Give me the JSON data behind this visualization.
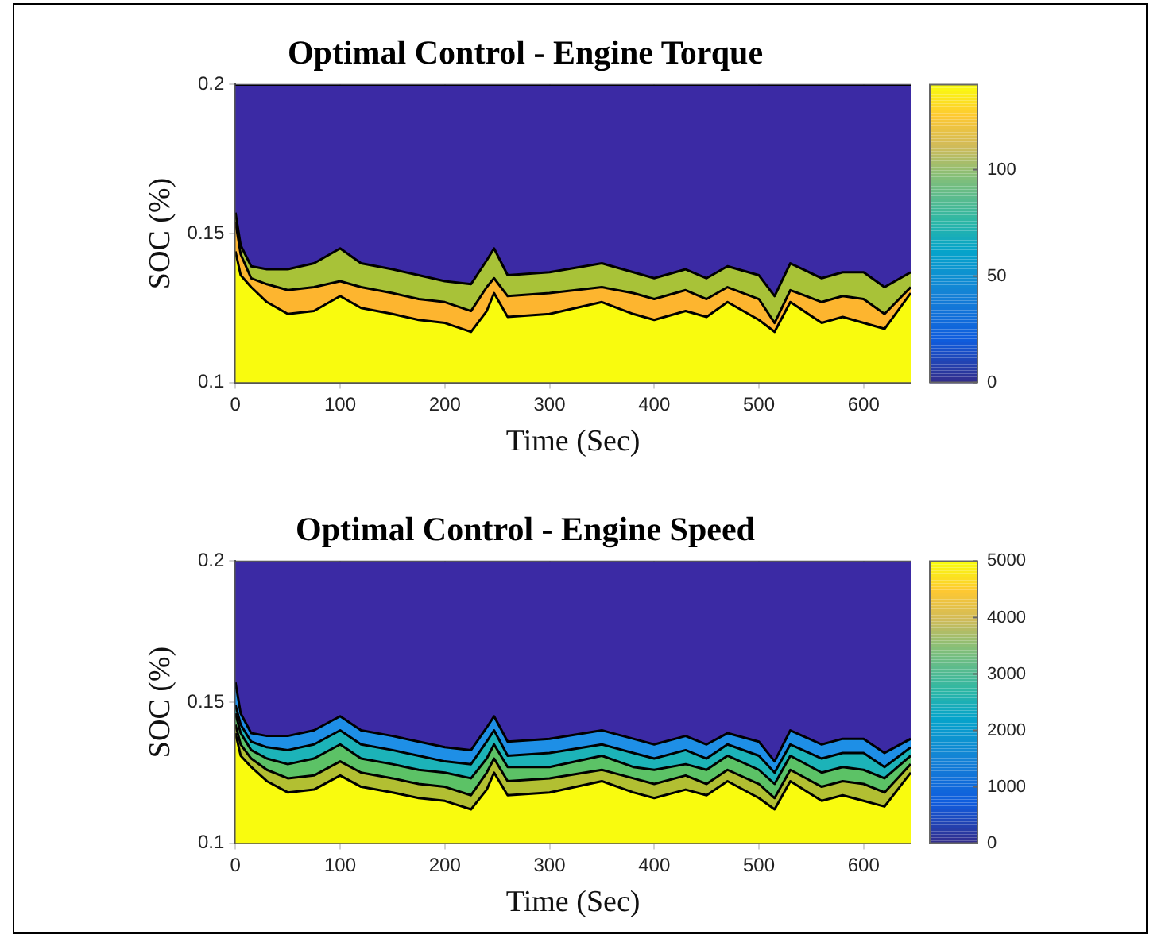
{
  "chart_data": [
    {
      "type": "area",
      "title": "Optimal Control - Engine Torque",
      "xlabel": "Time (Sec)",
      "ylabel": "SOC (%)",
      "x": [
        0,
        5,
        15,
        30,
        50,
        75,
        100,
        120,
        150,
        175,
        200,
        225,
        240,
        247,
        260,
        300,
        350,
        380,
        400,
        430,
        450,
        470,
        500,
        515,
        530,
        560,
        580,
        600,
        620,
        645
      ],
      "series": [
        {
          "color": "#f9fb0e",
          "values": [
            0.144,
            0.136,
            0.132,
            0.127,
            0.123,
            0.124,
            0.129,
            0.125,
            0.123,
            0.121,
            0.12,
            0.117,
            0.124,
            0.13,
            0.122,
            0.123,
            0.127,
            0.123,
            0.121,
            0.124,
            0.122,
            0.127,
            0.121,
            0.117,
            0.127,
            0.12,
            0.122,
            0.12,
            0.118,
            0.13
          ]
        },
        {
          "color": "#fdb52f",
          "values": [
            0.154,
            0.143,
            0.135,
            0.133,
            0.131,
            0.132,
            0.134,
            0.132,
            0.13,
            0.128,
            0.127,
            0.124,
            0.132,
            0.135,
            0.129,
            0.13,
            0.132,
            0.13,
            0.128,
            0.131,
            0.128,
            0.132,
            0.128,
            0.12,
            0.131,
            0.127,
            0.129,
            0.128,
            0.123,
            0.132
          ]
        },
        {
          "color": "#a8c238",
          "values": [
            0.157,
            0.146,
            0.139,
            0.138,
            0.138,
            0.14,
            0.145,
            0.14,
            0.138,
            0.136,
            0.134,
            0.133,
            0.141,
            0.145,
            0.136,
            0.137,
            0.14,
            0.137,
            0.135,
            0.138,
            0.135,
            0.139,
            0.136,
            0.129,
            0.14,
            0.135,
            0.137,
            0.137,
            0.132,
            0.137
          ]
        },
        {
          "color": "#3b2aa4",
          "values": [
            0.2,
            0.2,
            0.2,
            0.2,
            0.2,
            0.2,
            0.2,
            0.2,
            0.2,
            0.2,
            0.2,
            0.2,
            0.2,
            0.2,
            0.2,
            0.2,
            0.2,
            0.2,
            0.2,
            0.2,
            0.2,
            0.2,
            0.2,
            0.2,
            0.2,
            0.2,
            0.2,
            0.2,
            0.2,
            0.2
          ]
        }
      ],
      "xlim": [
        0,
        645
      ],
      "xticks": [
        0,
        100,
        200,
        300,
        400,
        500,
        600
      ],
      "ylim": [
        0.1,
        0.2
      ],
      "yticks": [
        0.1,
        0.15,
        0.2
      ],
      "grid": true,
      "legend": false,
      "clim": [
        0,
        140
      ],
      "cticks": [
        0,
        50,
        100
      ]
    },
    {
      "type": "area",
      "title": "Optimal Control - Engine Speed",
      "xlabel": "Time (Sec)",
      "ylabel": "SOC (%)",
      "x": [
        0,
        5,
        15,
        30,
        50,
        75,
        100,
        120,
        150,
        175,
        200,
        225,
        240,
        247,
        260,
        300,
        350,
        380,
        400,
        430,
        450,
        470,
        500,
        515,
        530,
        560,
        580,
        600,
        620,
        645
      ],
      "series": [
        {
          "color": "#f9fb0e",
          "values": [
            0.139,
            0.131,
            0.127,
            0.122,
            0.118,
            0.119,
            0.124,
            0.12,
            0.118,
            0.116,
            0.115,
            0.112,
            0.119,
            0.125,
            0.117,
            0.118,
            0.122,
            0.118,
            0.116,
            0.119,
            0.117,
            0.122,
            0.116,
            0.112,
            0.122,
            0.115,
            0.117,
            0.115,
            0.113,
            0.125
          ]
        },
        {
          "color": "#b2bf32",
          "values": [
            0.142,
            0.135,
            0.13,
            0.126,
            0.123,
            0.124,
            0.129,
            0.125,
            0.123,
            0.121,
            0.12,
            0.117,
            0.125,
            0.13,
            0.122,
            0.123,
            0.126,
            0.123,
            0.121,
            0.124,
            0.121,
            0.126,
            0.121,
            0.116,
            0.126,
            0.12,
            0.122,
            0.121,
            0.118,
            0.128
          ]
        },
        {
          "color": "#5cc266",
          "values": [
            0.146,
            0.139,
            0.133,
            0.13,
            0.128,
            0.13,
            0.135,
            0.13,
            0.128,
            0.126,
            0.125,
            0.123,
            0.13,
            0.135,
            0.127,
            0.127,
            0.131,
            0.127,
            0.126,
            0.128,
            0.126,
            0.131,
            0.126,
            0.121,
            0.131,
            0.125,
            0.127,
            0.126,
            0.123,
            0.131
          ]
        },
        {
          "color": "#1cb3b8",
          "values": [
            0.149,
            0.142,
            0.136,
            0.134,
            0.133,
            0.135,
            0.14,
            0.135,
            0.133,
            0.131,
            0.129,
            0.128,
            0.136,
            0.14,
            0.131,
            0.132,
            0.135,
            0.132,
            0.13,
            0.133,
            0.13,
            0.135,
            0.131,
            0.125,
            0.135,
            0.13,
            0.132,
            0.132,
            0.127,
            0.134
          ]
        },
        {
          "color": "#1e8fe6",
          "values": [
            0.157,
            0.146,
            0.139,
            0.138,
            0.138,
            0.14,
            0.145,
            0.14,
            0.138,
            0.136,
            0.134,
            0.133,
            0.141,
            0.145,
            0.136,
            0.137,
            0.14,
            0.137,
            0.135,
            0.138,
            0.135,
            0.139,
            0.136,
            0.129,
            0.14,
            0.135,
            0.137,
            0.137,
            0.132,
            0.137
          ]
        },
        {
          "color": "#3b2aa4",
          "values": [
            0.2,
            0.2,
            0.2,
            0.2,
            0.2,
            0.2,
            0.2,
            0.2,
            0.2,
            0.2,
            0.2,
            0.2,
            0.2,
            0.2,
            0.2,
            0.2,
            0.2,
            0.2,
            0.2,
            0.2,
            0.2,
            0.2,
            0.2,
            0.2,
            0.2,
            0.2,
            0.2,
            0.2,
            0.2,
            0.2
          ]
        }
      ],
      "xlim": [
        0,
        645
      ],
      "xticks": [
        0,
        100,
        200,
        300,
        400,
        500,
        600
      ],
      "ylim": [
        0.1,
        0.2
      ],
      "yticks": [
        0.1,
        0.15,
        0.2
      ],
      "grid": true,
      "legend": false,
      "clim": [
        0,
        5000
      ],
      "cticks": [
        0,
        1000,
        2000,
        3000,
        4000,
        5000
      ]
    }
  ]
}
